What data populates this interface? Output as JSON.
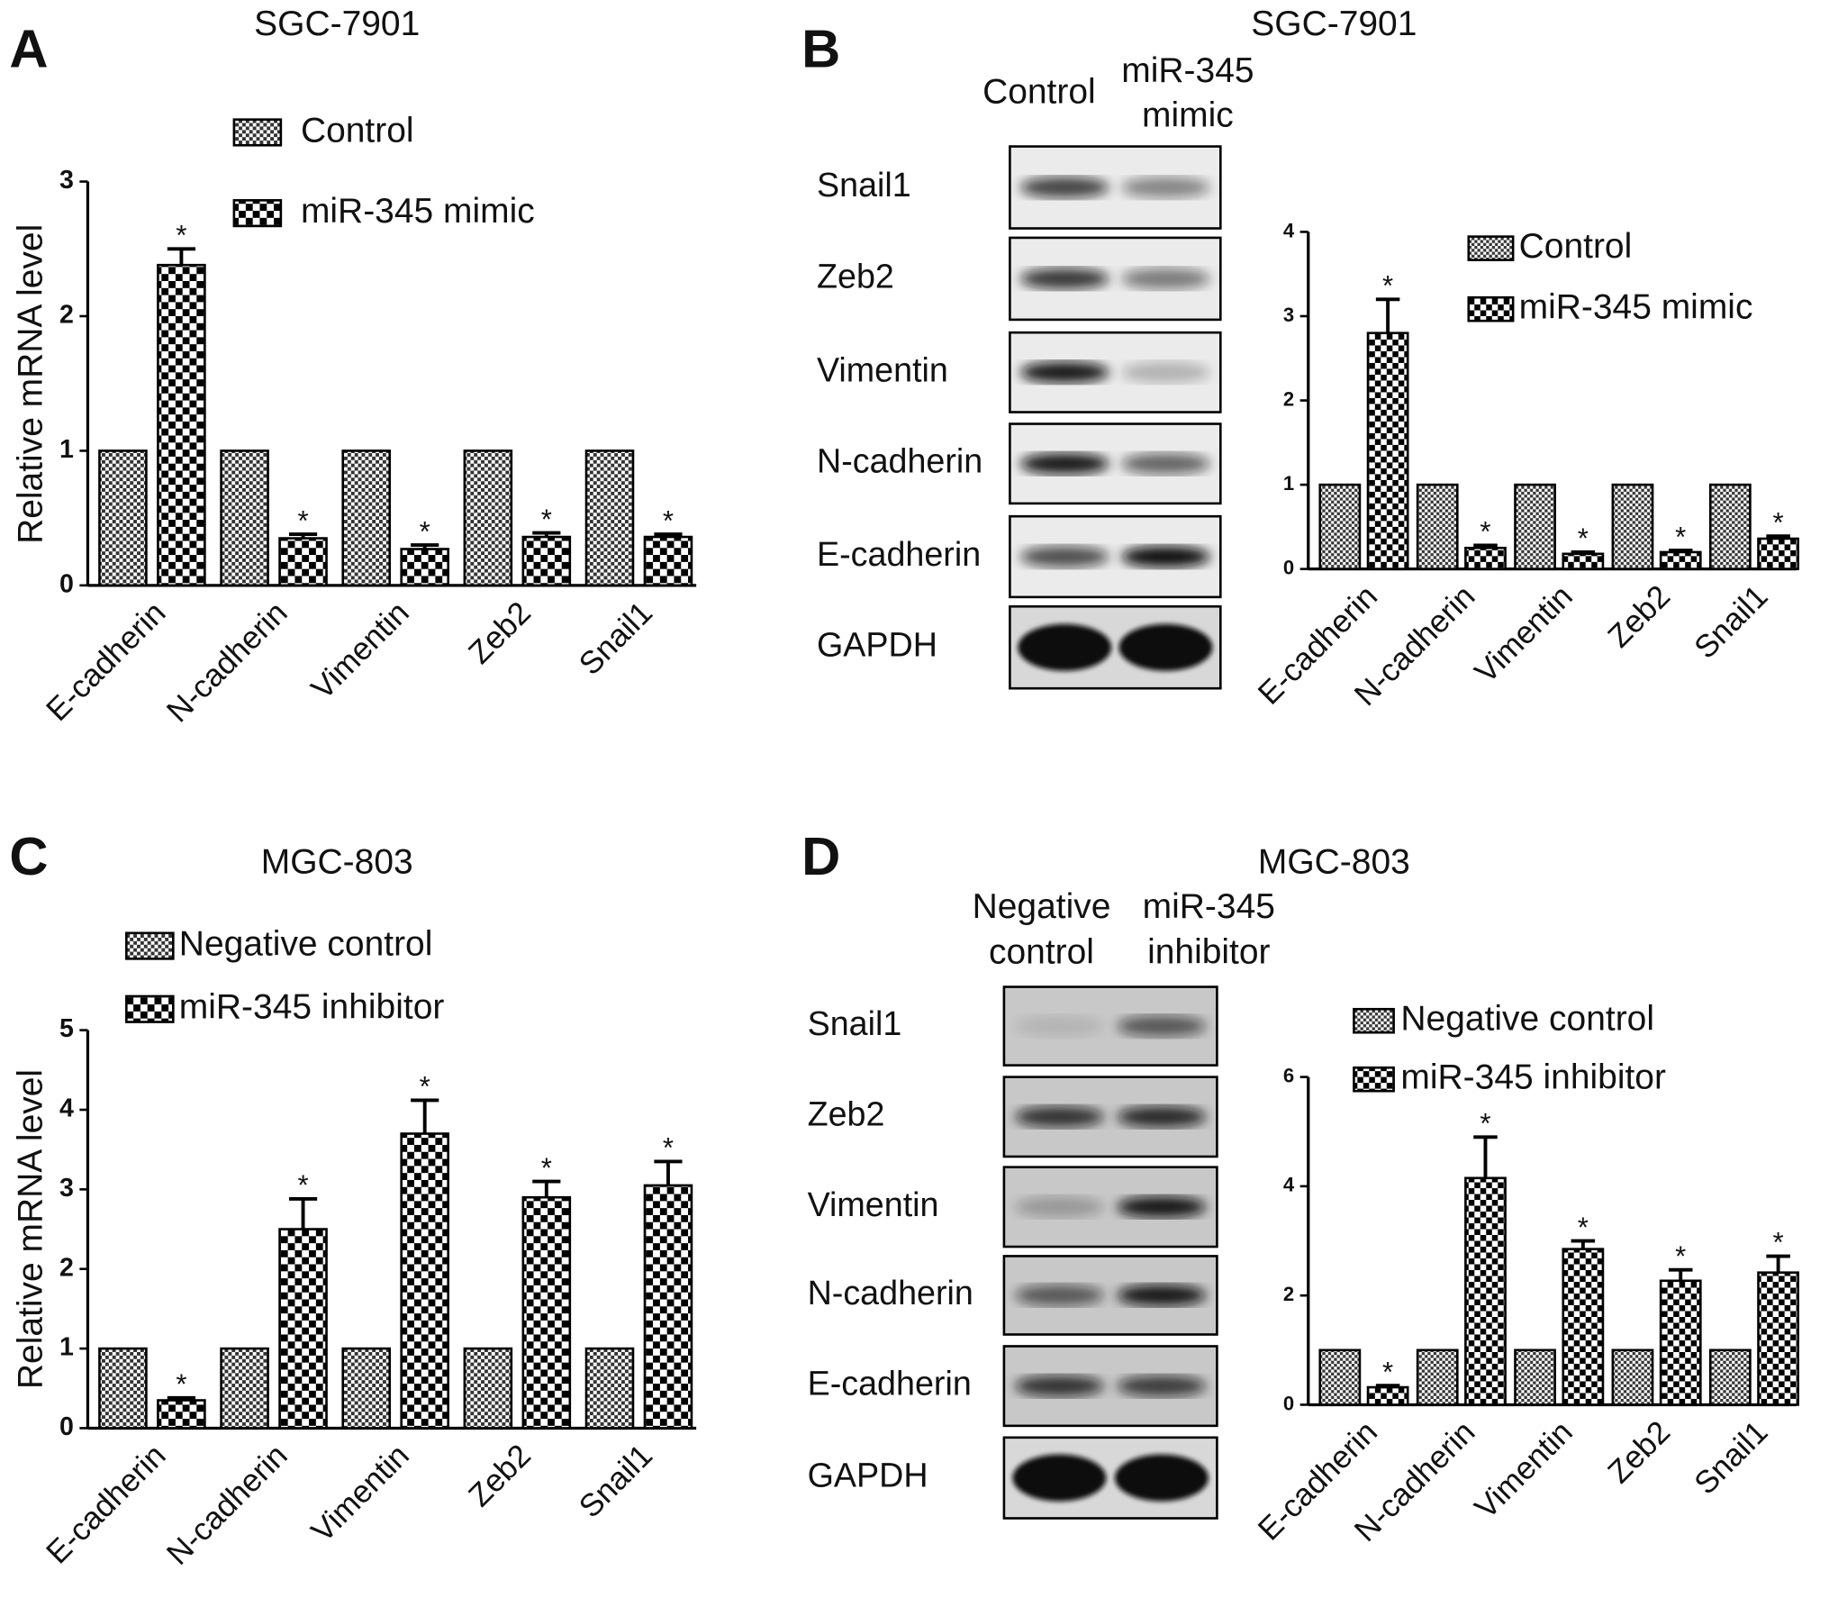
{
  "chart_data": [
    {
      "type": "bar",
      "panel": "A",
      "title": "SGC-7901",
      "ylabel": "Relative mRNA level",
      "categories": [
        "E-cadherin",
        "N-cadherin",
        "Vimentin",
        "Zeb2",
        "Snail1"
      ],
      "series": [
        {
          "name": "Control",
          "color": "#333333",
          "values": [
            1,
            1,
            1,
            1,
            1
          ]
        },
        {
          "name": "miR-345 mimic",
          "color": "#000000",
          "values": [
            2.38,
            0.35,
            0.27,
            0.36,
            0.36
          ],
          "errors": [
            0.12,
            0.03,
            0.03,
            0.03,
            0.02
          ],
          "significance": [
            "*",
            "*",
            "*",
            "*",
            "*"
          ]
        }
      ],
      "ylim": [
        0,
        3
      ],
      "yticks": [
        0,
        1,
        2,
        3
      ]
    },
    {
      "type": "bar",
      "panel": "B",
      "title": "SGC-7901",
      "categories": [
        "E-cadherin",
        "N-cadherin",
        "Vimentin",
        "Zeb2",
        "Snail1"
      ],
      "series": [
        {
          "name": "Control",
          "color": "#333333",
          "values": [
            1,
            1,
            1,
            1,
            1
          ]
        },
        {
          "name": "miR-345 mimic",
          "color": "#000000",
          "values": [
            2.8,
            0.25,
            0.18,
            0.2,
            0.36
          ],
          "errors": [
            0.4,
            0.03,
            0.02,
            0.02,
            0.03
          ],
          "significance": [
            "*",
            "*",
            "*",
            "*",
            "*"
          ]
        }
      ],
      "ylim": [
        0,
        4
      ],
      "yticks": [
        0,
        1,
        2,
        3,
        4
      ]
    },
    {
      "type": "bar",
      "panel": "C",
      "title": "MGC-803",
      "ylabel": "Relative mRNA level",
      "categories": [
        "E-cadherin",
        "N-cadherin",
        "Vimentin",
        "Zeb2",
        "Snail1"
      ],
      "series": [
        {
          "name": "Negative control",
          "color": "#333333",
          "values": [
            1,
            1,
            1,
            1,
            1
          ]
        },
        {
          "name": "miR-345 inhibitor",
          "color": "#000000",
          "values": [
            0.35,
            2.5,
            3.7,
            2.9,
            3.05
          ],
          "errors": [
            0.03,
            0.38,
            0.42,
            0.2,
            0.3
          ],
          "significance": [
            "*",
            "*",
            "*",
            "*",
            "*"
          ]
        }
      ],
      "ylim": [
        0,
        5
      ],
      "yticks": [
        0,
        1,
        2,
        3,
        4,
        5
      ]
    },
    {
      "type": "bar",
      "panel": "D",
      "title": "MGC-803",
      "categories": [
        "E-cadherin",
        "N-cadherin",
        "Vimentin",
        "Zeb2",
        "Snail1"
      ],
      "series": [
        {
          "name": "Negative control",
          "color": "#333333",
          "values": [
            1,
            1,
            1,
            1,
            1
          ]
        },
        {
          "name": "miR-345 inhibitor",
          "color": "#000000",
          "values": [
            0.32,
            4.15,
            2.85,
            2.27,
            2.42
          ],
          "errors": [
            0.03,
            0.75,
            0.15,
            0.2,
            0.3
          ],
          "significance": [
            "*",
            "*",
            "*",
            "*",
            "*"
          ]
        }
      ],
      "ylim": [
        0,
        6
      ],
      "yticks": [
        0,
        2,
        4,
        6
      ]
    }
  ],
  "blots": [
    {
      "lanes": [
        [
          "Control"
        ],
        [
          "miR-345",
          "mimic"
        ]
      ],
      "rows": [
        "Snail1",
        "Zeb2",
        "Vimentin",
        "N-cadherin",
        "E-cadherin",
        "GAPDH"
      ]
    },
    {
      "lanes": [
        [
          "Negative",
          "control"
        ],
        [
          "miR-345",
          "inhibitor"
        ]
      ],
      "rows": [
        "Snail1",
        "Zeb2",
        "Vimentin",
        "N-cadherin",
        "E-cadherin",
        "GAPDH"
      ]
    }
  ]
}
